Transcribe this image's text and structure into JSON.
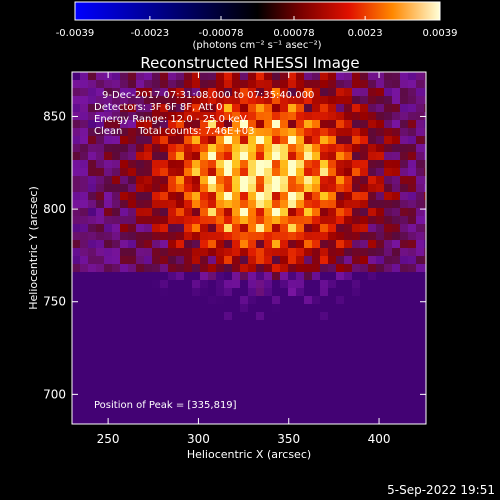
{
  "chart_data": {
    "type": "heatmap",
    "title": "Reconstructed RHESSI Image",
    "xlabel": "Heliocentric X (arcsec)",
    "ylabel": "Heliocentric Y (arcsec)",
    "xlim": [
      230,
      426
    ],
    "ylim": [
      684,
      874
    ],
    "x_ticks": [
      250,
      300,
      350,
      400
    ],
    "y_ticks": [
      700,
      750,
      800,
      850
    ],
    "x_tick_labels": [
      "250",
      "300",
      "350",
      "400"
    ],
    "y_tick_labels": [
      "700",
      "750",
      "800",
      "850"
    ],
    "colorbar": {
      "min": -0.0039,
      "max": 0.0039,
      "tick_values": [
        -0.0039,
        -0.0023,
        -0.00078,
        0.00078,
        0.0023,
        0.0039
      ],
      "tick_labels": [
        "-0.0039",
        "-0.0023",
        "-0.00078",
        "0.00078",
        "0.0023",
        "0.0039"
      ],
      "units_label": "(photons cm⁻² s⁻¹ asec⁻²)"
    },
    "annotations": [
      "9-Dec-2017 07:31:08.000 to 07:35:40.000",
      "Detectors: 3F 6F 8F, Att 0",
      "Energy Range: 12.0 - 25.0 keV",
      "Clean     Total counts: 7.46E+03"
    ],
    "peak": {
      "label": "Position of Peak = [335,819]",
      "x": 335,
      "y": 819
    },
    "grid": false,
    "colormap": "hot"
  },
  "footer": {
    "timestamp": "5-Sep-2022 19:51"
  }
}
